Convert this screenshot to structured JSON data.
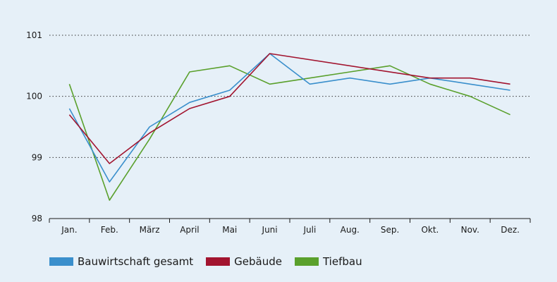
{
  "chart_data": {
    "type": "line",
    "title": "",
    "xlabel": "",
    "ylabel": "",
    "categories": [
      "Jan.",
      "Feb.",
      "März",
      "April",
      "Mai",
      "Juni",
      "Juli",
      "Aug.",
      "Sep.",
      "Okt.",
      "Nov.",
      "Dez."
    ],
    "ylim": [
      98,
      101
    ],
    "yticks": [
      "98",
      "99",
      "100",
      "101"
    ],
    "grid": "horizontal dotted",
    "legend_position": "bottom",
    "series": [
      {
        "name": "Bauwirtschaft gesamt",
        "color": "#3a8fcc",
        "values": [
          99.8,
          98.6,
          99.5,
          99.9,
          100.1,
          100.7,
          100.2,
          100.3,
          100.2,
          100.3,
          100.2,
          100.1
        ]
      },
      {
        "name": "Gebäude",
        "color": "#a2142f",
        "values": [
          99.7,
          98.9,
          99.4,
          99.8,
          100.0,
          100.7,
          null,
          null,
          null,
          100.3,
          100.3,
          100.2
        ]
      },
      {
        "name": "Tiefbau",
        "color": "#5aa02c",
        "values": [
          100.2,
          98.3,
          99.3,
          100.4,
          100.5,
          100.2,
          100.3,
          100.4,
          100.5,
          100.2,
          100.0,
          99.7
        ]
      }
    ]
  }
}
